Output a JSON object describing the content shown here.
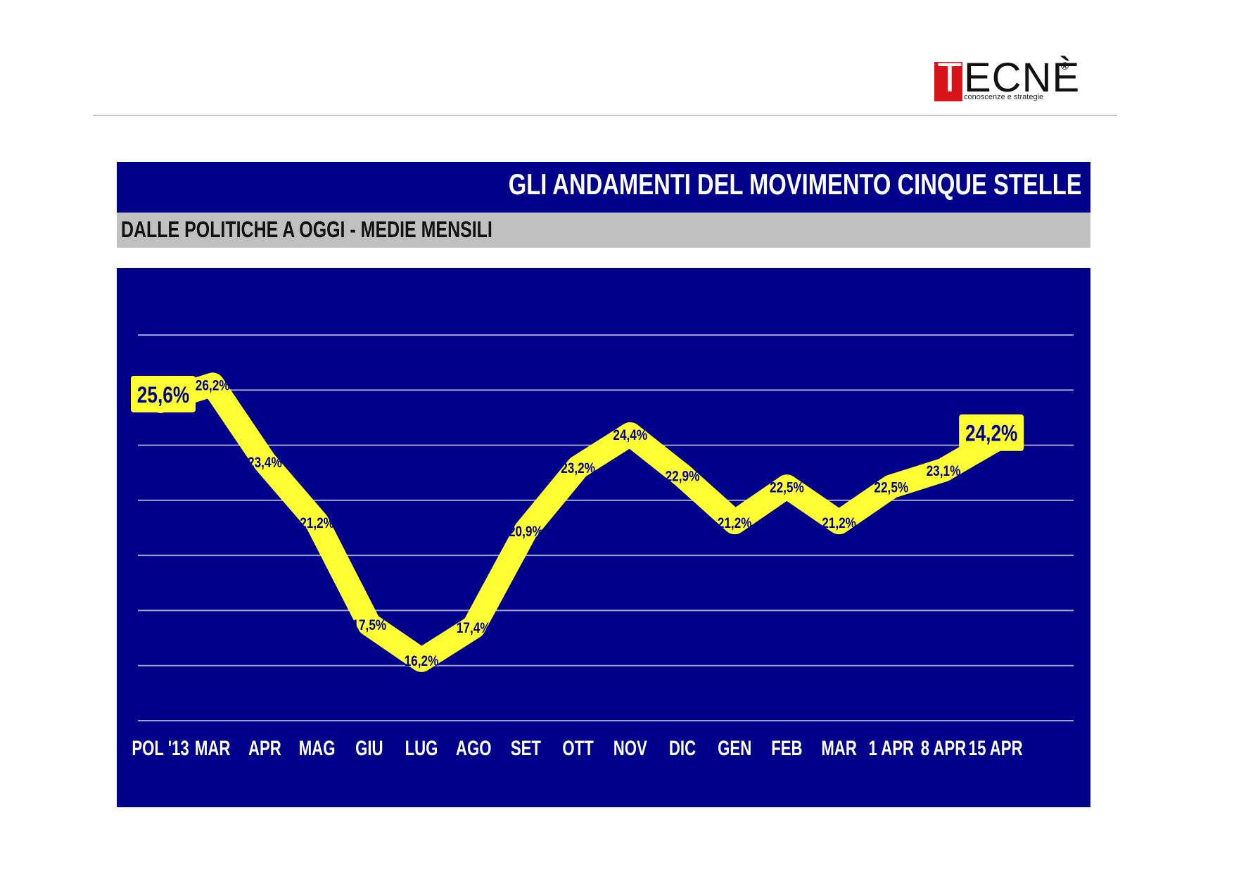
{
  "logo": {
    "letter_t": "T",
    "letters_rest": "ECNÈ",
    "registered": "®",
    "tagline": "conoscenze e strategie"
  },
  "header": {
    "title": "GLI ANDAMENTI DEL MOVIMENTO CINQUE STELLE",
    "subtitle": "DALLE POLITICHE A OGGI - MEDIE MENSILI"
  },
  "colors": {
    "panel": "#00008b",
    "line": "#ffff33",
    "label_text": "#00008b",
    "axis_text": "#ffffff",
    "grid": "#a0a0c8"
  },
  "chart_data": {
    "type": "line",
    "title": "GLI ANDAMENTI DEL MOVIMENTO CINQUE STELLE",
    "subtitle": "DALLE POLITICHE A OGGI - MEDIE MENSILI",
    "xlabel": "",
    "ylabel": "",
    "categories": [
      "POL '13",
      "MAR",
      "APR",
      "MAG",
      "GIU",
      "LUG",
      "AGO",
      "SET",
      "OTT",
      "NOV",
      "DIC",
      "GEN",
      "FEB",
      "MAR",
      "1 APR",
      "8 APR",
      "15 APR"
    ],
    "series": [
      {
        "values": [
          25.6,
          26.2,
          23.4,
          21.2,
          17.5,
          16.2,
          17.4,
          20.9,
          23.2,
          24.4,
          22.9,
          21.2,
          22.5,
          21.2,
          22.5,
          23.1,
          24.2
        ],
        "labels": [
          "25,6%",
          "26,2%",
          "23,4%",
          "21,2%",
          "17,5%",
          "16,2%",
          "17,4%",
          "20,9%",
          "23,2%",
          "24,4%",
          "22,9%",
          "21,2%",
          "22,5%",
          "21,2%",
          "22,5%",
          "23,1%",
          "24,2%"
        ]
      }
    ],
    "highlighted_labels": [
      0,
      16
    ],
    "ylim": [
      14,
      28
    ],
    "grid": true,
    "legend": "none"
  }
}
